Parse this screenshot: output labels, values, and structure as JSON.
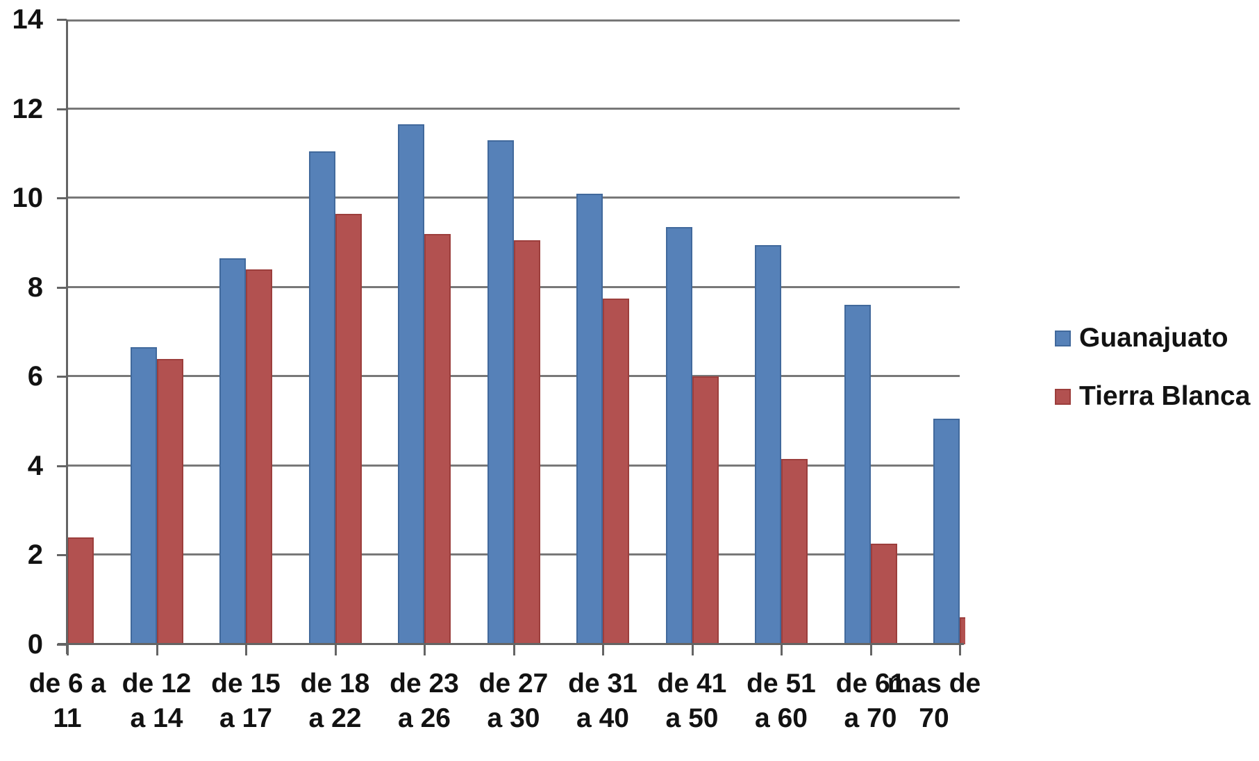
{
  "chart_data": {
    "type": "bar",
    "categories": [
      "de 6 a 11",
      "de 12 a 14",
      "de 15 a 17",
      "de 18 a 22",
      "de 23 a 26",
      "de 27 a 30",
      "de 31 a 40",
      "de 41 a 50",
      "de 51 a 60",
      "de 61 a 70",
      "mas de 70"
    ],
    "category_lines": [
      [
        "de 6 a",
        "11"
      ],
      [
        "de 12",
        "a 14"
      ],
      [
        "de 15",
        "a 17"
      ],
      [
        "de 18",
        "a 22"
      ],
      [
        "de 23",
        "a 26"
      ],
      [
        "de 27",
        "a 30"
      ],
      [
        "de 31",
        "a 40"
      ],
      [
        "de 41",
        "a 50"
      ],
      [
        "de 51",
        "a 60"
      ],
      [
        "de 61",
        "a 70"
      ],
      [
        "mas de",
        "70"
      ]
    ],
    "series": [
      {
        "name": "Guanajuato",
        "color": "#5681B8",
        "border_color": "#41699C",
        "values": [
          0,
          6.65,
          8.65,
          11.05,
          11.65,
          11.3,
          10.1,
          9.35,
          8.95,
          7.6,
          5.05
        ]
      },
      {
        "name": "Tierra Blanca",
        "color": "#B25150",
        "border_color": "#9C3E3C",
        "values": [
          2.4,
          6.4,
          8.4,
          9.65,
          9.2,
          9.05,
          7.75,
          6.0,
          4.15,
          2.25,
          0.6
        ]
      }
    ],
    "title": "",
    "xlabel": "",
    "ylabel": "",
    "ylim": [
      0,
      14
    ],
    "ytick_step": 2,
    "yticks": [
      "0",
      "2",
      "4",
      "6",
      "8",
      "10",
      "12",
      "14"
    ],
    "grid": true,
    "legend_position": "right",
    "note_last_red_bar_clipped": "red bar of 'mas de 70' is cut off at plot right edge"
  }
}
